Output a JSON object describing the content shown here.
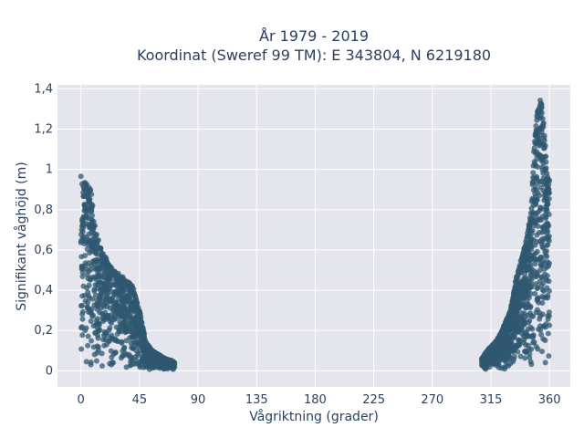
{
  "chart_data": {
    "type": "scatter",
    "title": "År 1979 - 2019",
    "subtitle": "Koordinat (Sweref 99 TM): E 343804, N 6219180",
    "xlabel": "Vågriktning (grader)",
    "ylabel": "Signifikant våghöjd (m)",
    "xlim": [
      -18,
      376
    ],
    "ylim": [
      -0.08,
      1.42
    ],
    "xticks": [
      0,
      45,
      90,
      135,
      180,
      225,
      270,
      315,
      360
    ],
    "xtick_labels": [
      "0",
      "45",
      "90",
      "135",
      "180",
      "225",
      "270",
      "315",
      "360"
    ],
    "yticks": [
      0,
      0.2,
      0.4,
      0.6,
      0.8,
      1.0,
      1.2,
      1.4
    ],
    "ytick_labels": [
      "0",
      "0,2",
      "0,4",
      "0,6",
      "0,8",
      "1",
      "1,2",
      "1,4"
    ],
    "grid": true,
    "marker_color": "#2f5870",
    "plot_background": "#e5e5ee",
    "clusters": [
      {
        "name": "",
        "envelope_x": [
          0,
          2,
          4,
          6,
          8,
          10,
          12,
          15,
          20,
          25,
          30,
          35,
          40,
          45,
          50,
          55,
          60,
          65,
          70,
          72
        ],
        "envelope_y": [
          0.97,
          0.95,
          0.93,
          0.92,
          0.9,
          0.75,
          0.68,
          0.62,
          0.55,
          0.5,
          0.48,
          0.45,
          0.42,
          0.3,
          0.14,
          0.1,
          0.08,
          0.06,
          0.05,
          0.04
        ]
      },
      {
        "name": "",
        "envelope_x": [
          308,
          312,
          318,
          322,
          326,
          330,
          334,
          338,
          342,
          346,
          348,
          350,
          352,
          354,
          356,
          358,
          360
        ],
        "envelope_y": [
          0.06,
          0.1,
          0.14,
          0.18,
          0.24,
          0.3,
          0.45,
          0.55,
          0.65,
          0.8,
          1.1,
          1.25,
          1.36,
          1.32,
          1.2,
          1.0,
          0.95
        ]
      }
    ]
  }
}
